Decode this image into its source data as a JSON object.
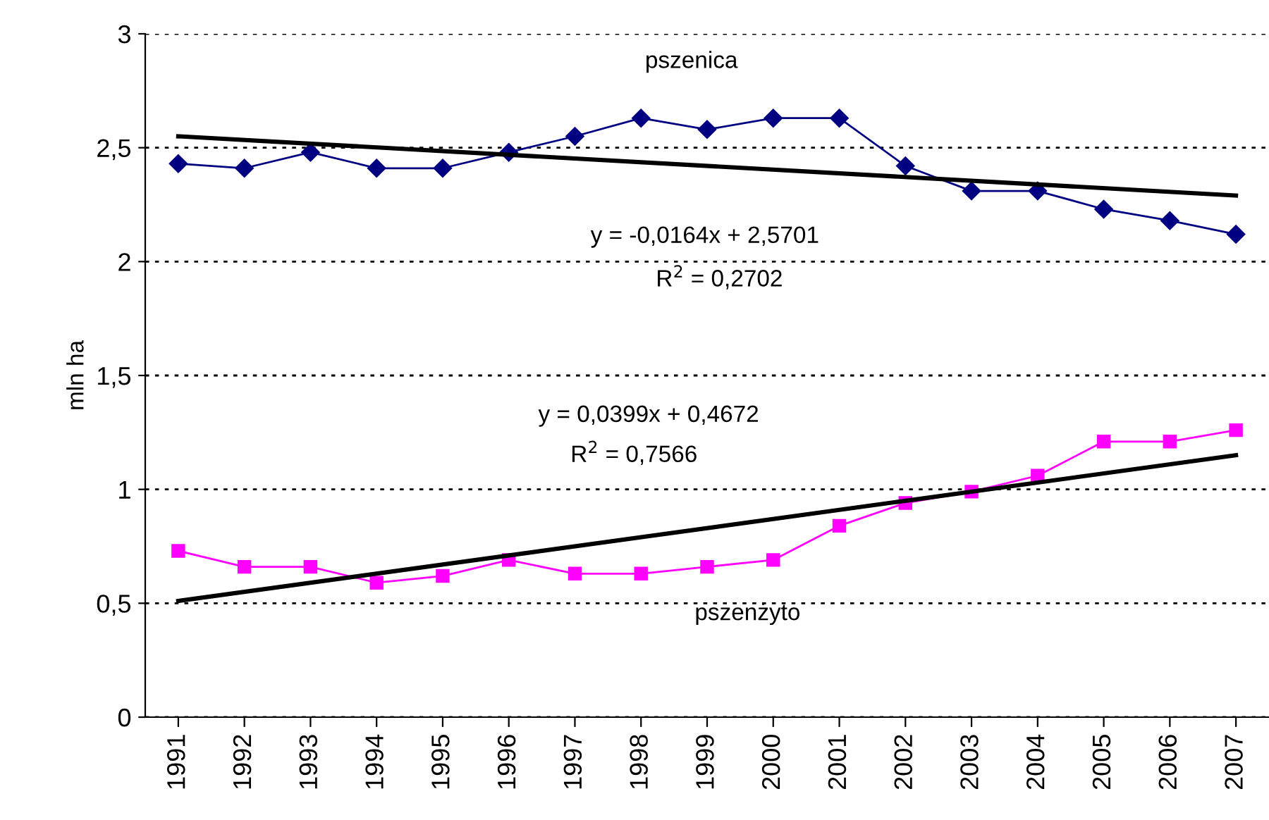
{
  "chart_data": {
    "type": "line",
    "categories": [
      "1991",
      "1992",
      "1993",
      "1994",
      "1995",
      "1996",
      "1997",
      "1998",
      "1999",
      "2000",
      "2001",
      "2002",
      "2003",
      "2004",
      "2005",
      "2006",
      "2007"
    ],
    "ylabel": "mln ha",
    "series": [
      {
        "color": "#000080",
        "marker": "diamond",
        "values": [
          2.43,
          2.41,
          2.48,
          2.41,
          2.41,
          2.48,
          2.55,
          2.63,
          2.58,
          2.63,
          2.63,
          2.42,
          2.31,
          2.31,
          2.23,
          2.18,
          2.12
        ]
      },
      {
        "color": "#ff00ff",
        "marker": "square",
        "values": [
          0.73,
          0.66,
          0.66,
          0.59,
          0.62,
          0.69,
          0.63,
          0.63,
          0.66,
          0.69,
          0.84,
          0.94,
          0.99,
          1.06,
          1.21,
          1.21,
          1.26
        ]
      },
      {
        "color": "#000000",
        "marker": "none",
        "values": [
          2.55,
          null,
          null,
          null,
          null,
          null,
          null,
          null,
          null,
          null,
          null,
          null,
          null,
          null,
          null,
          null,
          2.29
        ]
      },
      {
        "color": "#000000",
        "marker": "none",
        "values": [
          0.51,
          null,
          null,
          null,
          null,
          null,
          null,
          null,
          null,
          null,
          null,
          null,
          null,
          null,
          null,
          null,
          1.15
        ]
      }
    ],
    "ylim": [
      0,
      3
    ],
    "yticks": [
      0,
      {
        "value": 0.5,
        "label": "0,5"
      },
      1,
      {
        "value": 1.5,
        "label": "1,5"
      },
      2,
      {
        "value": 2.5,
        "label": "2,5"
      },
      3
    ],
    "grid": "y",
    "legend": false,
    "annotations": [
      "pszenica",
      "y = -0,0164x + 2,5701",
      "R$^{2}$ = 0,2702",
      "y = 0,0399x + 0,4672",
      "R$^{2}$ = 0,7566",
      "pszenżyto"
    ]
  }
}
